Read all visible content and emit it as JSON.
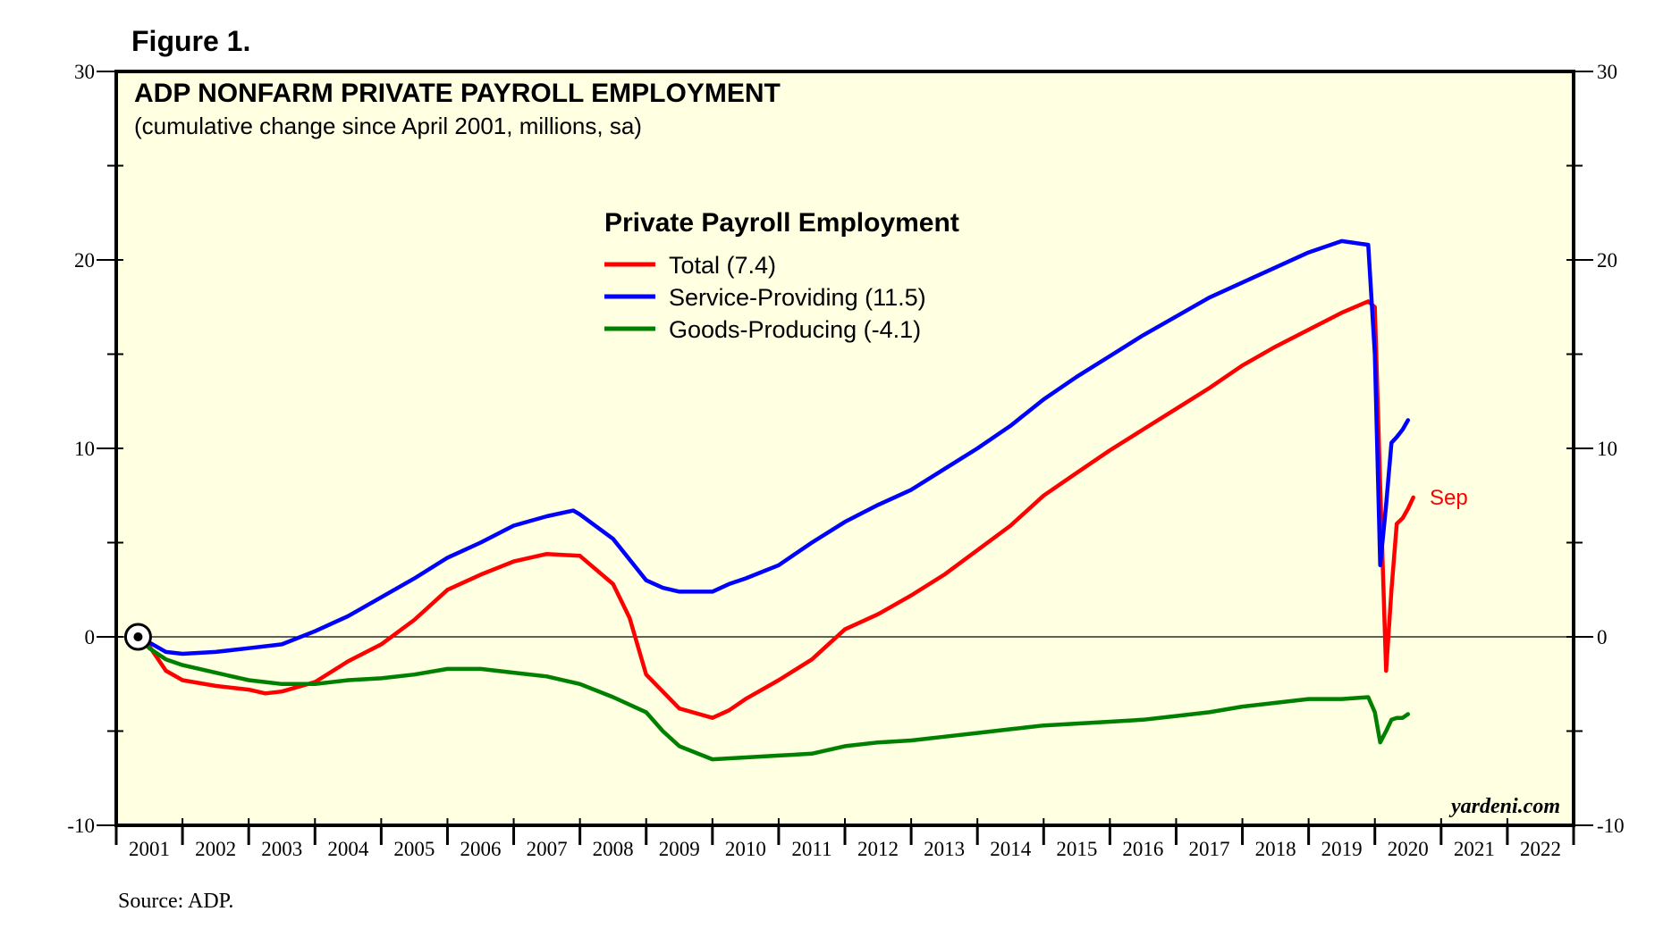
{
  "figure_label": "Figure 1.",
  "source": "Source: ADP.",
  "chart_data": {
    "type": "line",
    "title": "ADP NONFARM PRIVATE PAYROLL EMPLOYMENT",
    "subtitle": "(cumulative change since April 2001, millions, sa)",
    "legend_title": "Private Payroll Employment",
    "legend_placement": "top-center",
    "watermark": "yardeni.com",
    "xlabel": "",
    "ylabel": "",
    "xlim": [
      2001,
      2023
    ],
    "ylim": [
      -10,
      30
    ],
    "yticks": [
      -10,
      0,
      10,
      20,
      30
    ],
    "year_labels": [
      "2001",
      "2002",
      "2003",
      "2004",
      "2005",
      "2006",
      "2007",
      "2008",
      "2009",
      "2010",
      "2011",
      "2012",
      "2013",
      "2014",
      "2015",
      "2016",
      "2017",
      "2018",
      "2019",
      "2020",
      "2021",
      "2022"
    ],
    "annotation": {
      "text": "Sep",
      "color": "#ff0000"
    },
    "start_marker": {
      "x": 2001.33,
      "y": 0
    },
    "colors": {
      "total": "#ff0000",
      "service": "#0000ff",
      "goods": "#008000",
      "background": "#ffffe1"
    },
    "series": [
      {
        "name": "Total (7.4)",
        "color": "#ff0000",
        "points": [
          [
            2001.33,
            0
          ],
          [
            2001.5,
            -0.5
          ],
          [
            2001.75,
            -1.8
          ],
          [
            2002,
            -2.3
          ],
          [
            2002.5,
            -2.6
          ],
          [
            2003,
            -2.8
          ],
          [
            2003.25,
            -3.0
          ],
          [
            2003.5,
            -2.9
          ],
          [
            2004,
            -2.4
          ],
          [
            2004.5,
            -1.3
          ],
          [
            2005,
            -0.4
          ],
          [
            2005.5,
            0.9
          ],
          [
            2006,
            2.5
          ],
          [
            2006.5,
            3.3
          ],
          [
            2007,
            4.0
          ],
          [
            2007.5,
            4.4
          ],
          [
            2008,
            4.3
          ],
          [
            2008.5,
            2.8
          ],
          [
            2008.75,
            1.0
          ],
          [
            2009,
            -2.0
          ],
          [
            2009.5,
            -3.8
          ],
          [
            2010,
            -4.3
          ],
          [
            2010.25,
            -3.9
          ],
          [
            2010.5,
            -3.3
          ],
          [
            2011,
            -2.3
          ],
          [
            2011.5,
            -1.2
          ],
          [
            2012,
            0.4
          ],
          [
            2012.5,
            1.2
          ],
          [
            2013,
            2.2
          ],
          [
            2013.5,
            3.3
          ],
          [
            2014,
            4.6
          ],
          [
            2014.5,
            5.9
          ],
          [
            2015,
            7.5
          ],
          [
            2015.5,
            8.7
          ],
          [
            2016,
            9.9
          ],
          [
            2016.5,
            11.0
          ],
          [
            2017,
            12.1
          ],
          [
            2017.5,
            13.2
          ],
          [
            2018,
            14.4
          ],
          [
            2018.5,
            15.4
          ],
          [
            2019,
            16.3
          ],
          [
            2019.5,
            17.2
          ],
          [
            2019.9,
            17.8
          ],
          [
            2020,
            17.5
          ],
          [
            2020.08,
            8.0
          ],
          [
            2020.17,
            -1.8
          ],
          [
            2020.25,
            2.5
          ],
          [
            2020.33,
            6.0
          ],
          [
            2020.42,
            6.3
          ],
          [
            2020.5,
            6.8
          ],
          [
            2020.58,
            7.4
          ]
        ]
      },
      {
        "name": "Service-Providing (11.5)",
        "color": "#0000ff",
        "points": [
          [
            2001.33,
            0
          ],
          [
            2001.5,
            -0.3
          ],
          [
            2001.75,
            -0.8
          ],
          [
            2002,
            -0.9
          ],
          [
            2002.5,
            -0.8
          ],
          [
            2003,
            -0.6
          ],
          [
            2003.5,
            -0.4
          ],
          [
            2004,
            0.3
          ],
          [
            2004.5,
            1.1
          ],
          [
            2005,
            2.1
          ],
          [
            2005.5,
            3.1
          ],
          [
            2006,
            4.2
          ],
          [
            2006.5,
            5.0
          ],
          [
            2007,
            5.9
          ],
          [
            2007.5,
            6.4
          ],
          [
            2007.9,
            6.7
          ],
          [
            2008,
            6.5
          ],
          [
            2008.5,
            5.2
          ],
          [
            2009,
            3.0
          ],
          [
            2009.25,
            2.6
          ],
          [
            2009.5,
            2.4
          ],
          [
            2010,
            2.4
          ],
          [
            2010.25,
            2.8
          ],
          [
            2010.5,
            3.1
          ],
          [
            2011,
            3.8
          ],
          [
            2011.5,
            5.0
          ],
          [
            2012,
            6.1
          ],
          [
            2012.5,
            7.0
          ],
          [
            2013,
            7.8
          ],
          [
            2013.5,
            8.9
          ],
          [
            2014,
            10.0
          ],
          [
            2014.5,
            11.2
          ],
          [
            2015,
            12.6
          ],
          [
            2015.5,
            13.8
          ],
          [
            2016,
            14.9
          ],
          [
            2016.5,
            16.0
          ],
          [
            2017,
            17.0
          ],
          [
            2017.5,
            18.0
          ],
          [
            2018,
            18.8
          ],
          [
            2018.5,
            19.6
          ],
          [
            2019,
            20.4
          ],
          [
            2019.5,
            21.0
          ],
          [
            2019.9,
            20.8
          ],
          [
            2020,
            15.0
          ],
          [
            2020.08,
            3.8
          ],
          [
            2020.17,
            7.0
          ],
          [
            2020.25,
            10.3
          ],
          [
            2020.33,
            10.6
          ],
          [
            2020.42,
            11.0
          ],
          [
            2020.5,
            11.5
          ]
        ]
      },
      {
        "name": "Goods-Producing (-4.1)",
        "color": "#008000",
        "points": [
          [
            2001.33,
            0
          ],
          [
            2001.5,
            -0.6
          ],
          [
            2001.75,
            -1.2
          ],
          [
            2002,
            -1.5
          ],
          [
            2002.5,
            -1.9
          ],
          [
            2003,
            -2.3
          ],
          [
            2003.5,
            -2.5
          ],
          [
            2004,
            -2.5
          ],
          [
            2004.5,
            -2.3
          ],
          [
            2005,
            -2.2
          ],
          [
            2005.5,
            -2.0
          ],
          [
            2006,
            -1.7
          ],
          [
            2006.5,
            -1.7
          ],
          [
            2007,
            -1.9
          ],
          [
            2007.5,
            -2.1
          ],
          [
            2008,
            -2.5
          ],
          [
            2008.5,
            -3.2
          ],
          [
            2009,
            -4.0
          ],
          [
            2009.25,
            -5.0
          ],
          [
            2009.5,
            -5.8
          ],
          [
            2010,
            -6.5
          ],
          [
            2010.5,
            -6.4
          ],
          [
            2011,
            -6.3
          ],
          [
            2011.5,
            -6.2
          ],
          [
            2012,
            -5.8
          ],
          [
            2012.5,
            -5.6
          ],
          [
            2013,
            -5.5
          ],
          [
            2013.5,
            -5.3
          ],
          [
            2014,
            -5.1
          ],
          [
            2014.5,
            -4.9
          ],
          [
            2015,
            -4.7
          ],
          [
            2015.5,
            -4.6
          ],
          [
            2016,
            -4.5
          ],
          [
            2016.5,
            -4.4
          ],
          [
            2017,
            -4.2
          ],
          [
            2017.5,
            -4.0
          ],
          [
            2018,
            -3.7
          ],
          [
            2018.5,
            -3.5
          ],
          [
            2019,
            -3.3
          ],
          [
            2019.5,
            -3.3
          ],
          [
            2019.9,
            -3.2
          ],
          [
            2020,
            -4.0
          ],
          [
            2020.08,
            -5.6
          ],
          [
            2020.17,
            -5.0
          ],
          [
            2020.25,
            -4.4
          ],
          [
            2020.33,
            -4.3
          ],
          [
            2020.42,
            -4.3
          ],
          [
            2020.5,
            -4.1
          ]
        ]
      }
    ]
  }
}
